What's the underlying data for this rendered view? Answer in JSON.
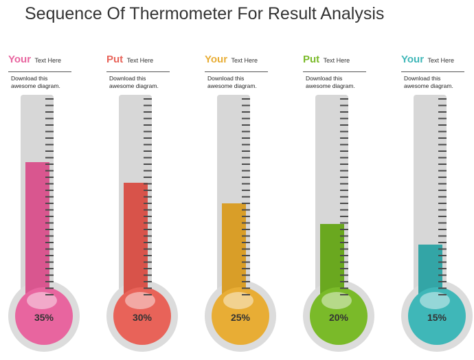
{
  "title": "Sequence Of Thermometer For Result Analysis",
  "thermometers": [
    {
      "word": "Your",
      "sub": "Text Here",
      "desc_line1": "Download this",
      "desc_line2": "awesome diagram.",
      "percent_label": "35%",
      "value": 35,
      "color": "#e8659f",
      "shade": "#d9568f"
    },
    {
      "word": "Put",
      "sub": "Text Here",
      "desc_line1": "Download this",
      "desc_line2": "awesome diagram.",
      "percent_label": "30%",
      "value": 30,
      "color": "#e86359",
      "shade": "#d8534a"
    },
    {
      "word": "Your",
      "sub": "Text Here",
      "desc_line1": "Download this",
      "desc_line2": "awesome diagram.",
      "percent_label": "25%",
      "value": 25,
      "color": "#e8ad35",
      "shade": "#d99e28"
    },
    {
      "word": "Put",
      "sub": "Text Here",
      "desc_line1": "Download this",
      "desc_line2": "awesome diagram.",
      "percent_label": "20%",
      "value": 20,
      "color": "#7aba29",
      "shade": "#6aa81f"
    },
    {
      "word": "Your",
      "sub": "Text Here",
      "desc_line1": "Download this",
      "desc_line2": "awesome diagram.",
      "percent_label": "15%",
      "value": 15,
      "color": "#3fb7b8",
      "shade": "#33a5a6"
    }
  ]
}
